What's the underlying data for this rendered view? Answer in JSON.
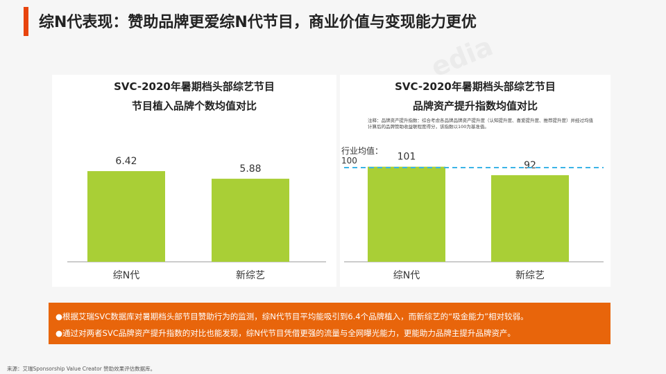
{
  "page_title": "综N代表现：赞助品牌更爱综N代节目，商业价值与变现能力更优",
  "chart_data": [
    {
      "type": "bar",
      "title": "SVC-2020年暑期档头部综艺节目",
      "subtitle": "节目植入品牌个数均值对比",
      "categories": [
        "综N代",
        "新综艺"
      ],
      "values": [
        6.42,
        5.88
      ],
      "value_labels": [
        "6.42",
        "5.88"
      ],
      "ylim": [
        0,
        7.6
      ],
      "bar_color": "#a9cf36"
    },
    {
      "type": "bar",
      "title": "SVC-2020年暑期档头部综艺节目",
      "subtitle": "品牌资产提升指数均值对比",
      "note": "注释：品牌资产提升指数：综合考虑各品牌品牌资产提升度（认知提升度、喜爱提升度、推荐提升度）并经过均值计算后的品牌赞助收益联程度得分，该指数以100为基准值。",
      "categories": [
        "综N代",
        "新综艺"
      ],
      "values": [
        101,
        92
      ],
      "value_labels": [
        "101",
        "92"
      ],
      "ylim": [
        0,
        114
      ],
      "bar_color": "#a9cf36",
      "reference_line": {
        "label_line1": "行业均值：",
        "label_line2": "100",
        "value": 100,
        "color": "#3ab3e6"
      }
    }
  ],
  "summary": [
    "●根据艾瑞SVC数据库对暑期档头部节目赞助行为的监测，综N代节目平均能吸引到6.4个品牌植入，而新综艺的“吸金能力”相对较弱。",
    "●通过对两者SVC品牌资产提升指数的对比也能发现，综N代节目凭借更强的流量与全网曝光能力，更能助力品牌主提升品牌资产。"
  ],
  "source": "来源：艾瑞Sponsorship Value Creator 赞助效果评估数据库。",
  "colors": {
    "accent": "#e8440e",
    "summary_bg": "#e8650b"
  }
}
